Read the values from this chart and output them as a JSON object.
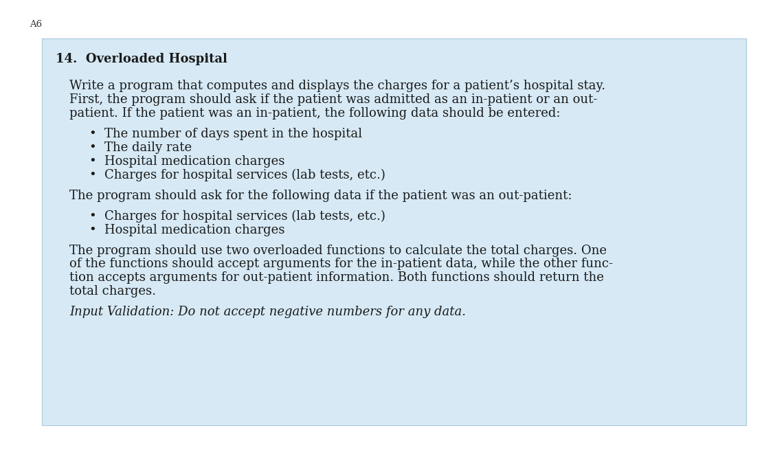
{
  "page_label": "A6",
  "page_label_fontsize": 9.5,
  "page_label_color": "#333333",
  "background_color": "#ffffff",
  "box_background_color": "#d6e9f5",
  "box_edge_color": "#a8c8dc",
  "title": "14.  Overloaded Hospital",
  "title_fontsize": 13,
  "title_fontweight": "bold",
  "body_fontsize": 13,
  "body_color": "#1a1a1a",
  "body_font": "DejaVu Serif",
  "paragraph1_lines": [
    "Write a program that computes and displays the charges for a patient’s hospital stay.",
    "First, the program should ask if the patient was admitted as an in-patient or an out-",
    "patient. If the patient was an in-patient, the following data should be entered:"
  ],
  "bullets1": [
    "The number of days spent in the hospital",
    "The daily rate",
    "Hospital medication charges",
    "Charges for hospital services (lab tests, etc.)"
  ],
  "paragraph2": "The program should ask for the following data if the patient was an out-patient:",
  "bullets2": [
    "Charges for hospital services (lab tests, etc.)",
    "Hospital medication charges"
  ],
  "paragraph3_lines": [
    "The program should use two overloaded functions to calculate the total charges. One",
    "of the functions should accept arguments for the in-patient data, while the other func-",
    "tion accepts arguments for out-patient information. Both functions should return the",
    "total charges."
  ],
  "paragraph4_italic": "Input Validation: Do not accept negative numbers for any data.",
  "bullet_char": "•"
}
